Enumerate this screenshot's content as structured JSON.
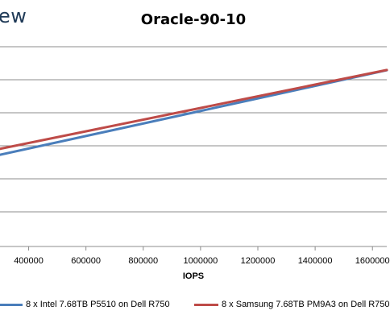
{
  "brand": {
    "text": "ew"
  },
  "chart_data": {
    "type": "line",
    "title": "Oracle-90-10",
    "xlabel": "IOPS",
    "ylabel": "",
    "xlim": [
      300000,
      1650000
    ],
    "x_ticks": [
      {
        "value": 400000,
        "label": "400000"
      },
      {
        "value": 600000,
        "label": "600000"
      },
      {
        "value": 800000,
        "label": "800000"
      },
      {
        "value": 1000000,
        "label": "1000000"
      },
      {
        "value": 1200000,
        "label": "1200000"
      },
      {
        "value": 1400000,
        "label": "1400000"
      },
      {
        "value": 1600000,
        "label": "1600000"
      }
    ],
    "grid": true,
    "series": [
      {
        "name": "8 x Intel 7.68TB P5510 on Dell R750",
        "color": "#4a7ebb",
        "x": [
          300000,
          1650000
        ],
        "y": [
          0.372,
          0.715
        ]
      },
      {
        "name": "8 x Samsung 7.68TB PM9A3 on Dell R750",
        "color": "#be4b48",
        "x": [
          300000,
          1650000
        ],
        "y": [
          0.396,
          0.716
        ]
      }
    ],
    "legend_position": "bottom"
  }
}
